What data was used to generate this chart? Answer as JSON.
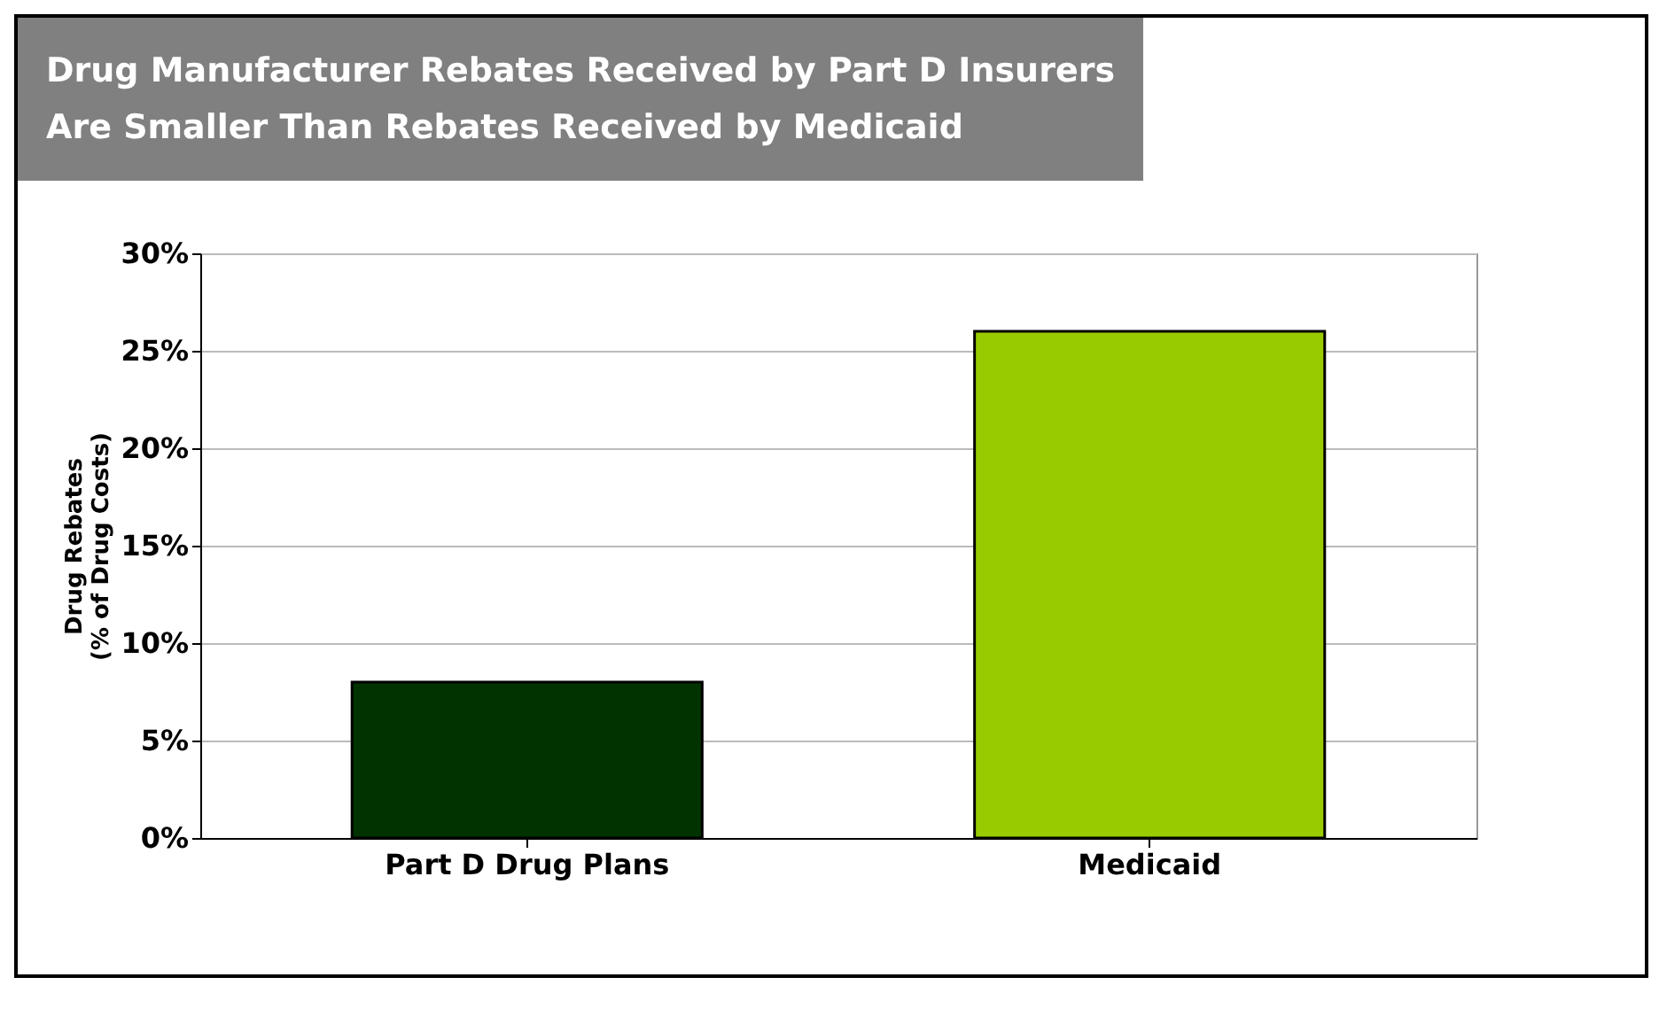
{
  "chart_data": {
    "type": "bar",
    "title": "Drug Manufacturer Rebates Received by Part D Insurers\nAre Smaller Than Rebates Received by Medicaid",
    "ylabel": "Drug Rebates\n(% of Drug Costs)",
    "categories": [
      "Part D Drug Plans",
      "Medicaid"
    ],
    "values": [
      8,
      26
    ],
    "colors": [
      "#003300",
      "#99cc00"
    ],
    "ylim": [
      0,
      30
    ],
    "yticks": [
      {
        "value": 0,
        "label": "0%"
      },
      {
        "value": 5,
        "label": "5%"
      },
      {
        "value": 10,
        "label": "10%"
      },
      {
        "value": 15,
        "label": "15%"
      },
      {
        "value": 20,
        "label": "20%"
      },
      {
        "value": 25,
        "label": "25%"
      },
      {
        "value": 30,
        "label": "30%"
      }
    ],
    "grid": true
  }
}
